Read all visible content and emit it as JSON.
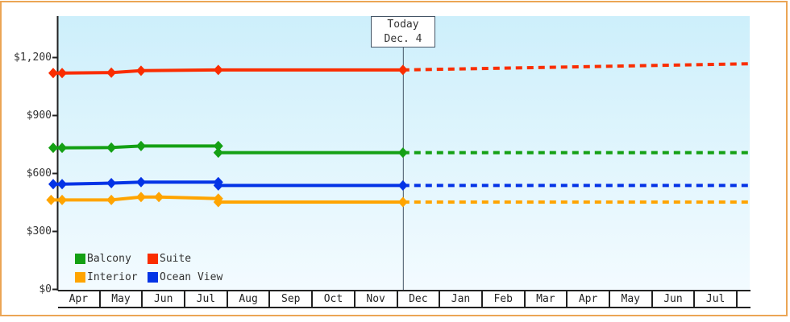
{
  "frame": {
    "border_color": "#EBA555",
    "background": "#FFFFFF"
  },
  "chart_data": {
    "type": "line",
    "description": "Cruise cabin price history by category with dotted future projection",
    "axis_color": "#222222",
    "today_line_color": "#445566",
    "plot_bg_top": "#CDEFFB",
    "plot_bg_bottom": "#F3FBFF",
    "ylim": [
      0,
      1410
    ],
    "y_ticks": [
      {
        "v": 0,
        "label": "$0"
      },
      {
        "v": 300,
        "label": "$300"
      },
      {
        "v": 600,
        "label": "$600"
      },
      {
        "v": 900,
        "label": "$900"
      },
      {
        "v": 1200,
        "label": "$1,200"
      }
    ],
    "x_months": [
      "Apr",
      "May",
      "Jun",
      "Jul",
      "Aug",
      "Sep",
      "Oct",
      "Nov",
      "Dec",
      "Jan",
      "Feb",
      "Mar",
      "Apr",
      "May",
      "Jun",
      "Jul"
    ],
    "today_x": 8.12,
    "x_end": 16.28,
    "today_box": {
      "line1": "Today",
      "line2": "Dec. 4"
    },
    "series": [
      {
        "name": "Suite",
        "color": "#FA2D00",
        "solid": [
          [
            -0.12,
            1120
          ],
          [
            0.09,
            1120
          ],
          [
            1.25,
            1122
          ],
          [
            1.95,
            1132
          ],
          [
            3.77,
            1136
          ],
          [
            8.12,
            1136
          ]
        ],
        "dashed": [
          [
            8.12,
            1136
          ],
          [
            16.28,
            1168
          ]
        ]
      },
      {
        "name": "Balcony",
        "color": "#14A014",
        "solid": [
          [
            -0.12,
            733
          ],
          [
            0.09,
            733
          ],
          [
            1.25,
            734
          ],
          [
            1.95,
            742
          ],
          [
            3.77,
            742
          ],
          [
            3.77,
            708
          ],
          [
            8.12,
            708
          ]
        ],
        "dashed": [
          [
            8.12,
            708
          ],
          [
            16.28,
            708
          ]
        ]
      },
      {
        "name": "Ocean View",
        "color": "#0433E6",
        "solid": [
          [
            -0.12,
            545
          ],
          [
            0.09,
            545
          ],
          [
            1.25,
            550
          ],
          [
            1.95,
            555
          ],
          [
            3.77,
            555
          ],
          [
            3.77,
            538
          ],
          [
            8.12,
            538
          ]
        ],
        "dashed": [
          [
            8.12,
            538
          ],
          [
            16.28,
            538
          ]
        ]
      },
      {
        "name": "Interior",
        "color": "#FFA400",
        "solid": [
          [
            -0.17,
            463
          ],
          [
            0.09,
            463
          ],
          [
            1.25,
            463
          ],
          [
            1.95,
            478
          ],
          [
            2.37,
            478
          ],
          [
            3.77,
            470
          ],
          [
            3.77,
            452
          ],
          [
            8.12,
            452
          ]
        ],
        "dashed": [
          [
            8.12,
            452
          ],
          [
            16.28,
            452
          ]
        ]
      }
    ],
    "legend": {
      "position": "bottom-left",
      "rows": [
        [
          {
            "label": "Balcony",
            "color": "#14A014"
          },
          {
            "label": "Suite",
            "color": "#FA2D00"
          }
        ],
        [
          {
            "label": "Interior",
            "color": "#FFA400"
          },
          {
            "label": "Ocean View",
            "color": "#0433E6"
          }
        ]
      ]
    }
  }
}
